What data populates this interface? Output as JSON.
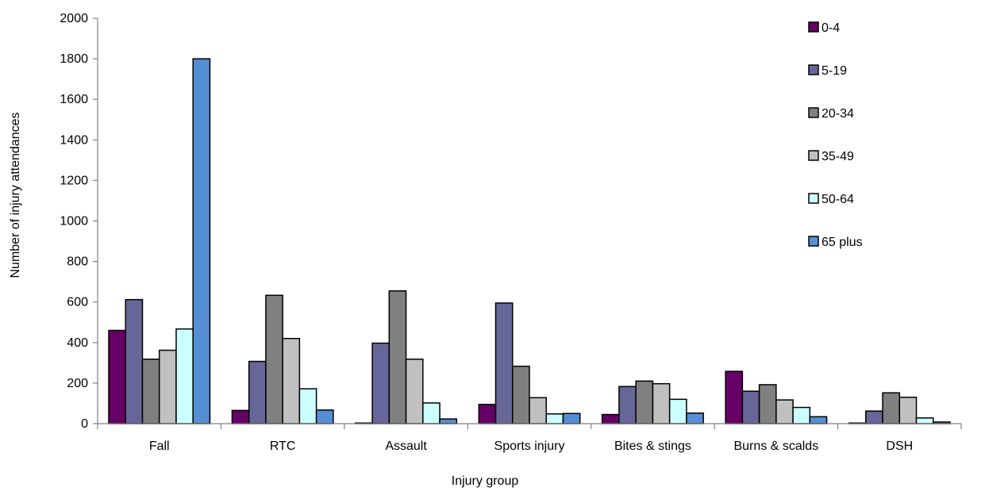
{
  "chart_data": {
    "type": "bar",
    "title": "",
    "xlabel": "Injury group",
    "ylabel": "Number of injury attendances",
    "ylim": [
      0,
      2000
    ],
    "yticks": [
      0,
      200,
      400,
      600,
      800,
      1000,
      1200,
      1400,
      1600,
      1800,
      2000
    ],
    "grid": false,
    "legend": "right",
    "categories": [
      "Fall",
      "RTC",
      "Assault",
      "Sports injury",
      "Bites & stings",
      "Burns & scalds",
      "DSH"
    ],
    "series": [
      {
        "name": "0-4",
        "color": "#660066",
        "values": [
          460,
          65,
          3,
          95,
          45,
          258,
          3
        ]
      },
      {
        "name": "5-19",
        "color": "#666699",
        "values": [
          612,
          307,
          397,
          595,
          183,
          160,
          62
        ]
      },
      {
        "name": "20-34",
        "color": "#808080",
        "values": [
          318,
          633,
          655,
          283,
          210,
          192,
          152
        ]
      },
      {
        "name": "35-49",
        "color": "#c0c0c0",
        "values": [
          362,
          420,
          318,
          128,
          197,
          117,
          130
        ]
      },
      {
        "name": "50-64",
        "color": "#ccffff",
        "values": [
          467,
          172,
          102,
          48,
          120,
          80,
          28
        ]
      },
      {
        "name": "65 plus",
        "color": "#558ed5",
        "values": [
          1800,
          67,
          23,
          50,
          52,
          34,
          8
        ]
      }
    ]
  }
}
